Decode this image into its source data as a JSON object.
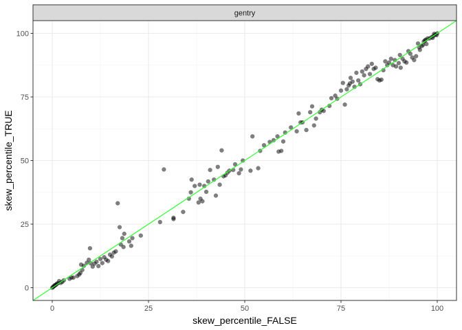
{
  "chart_data": {
    "type": "scatter",
    "facet": "gentry",
    "xlabel": "skew_percentile_FALSE",
    "ylabel": "skew_percentile_TRUE",
    "xlim": [
      -5,
      105
    ],
    "ylim": [
      -5,
      105
    ],
    "xticks": [
      0,
      25,
      50,
      75,
      100
    ],
    "yticks": [
      0,
      25,
      50,
      75,
      100
    ],
    "tick_labels": [
      "0",
      "25",
      "50",
      "75",
      "100"
    ],
    "grid": true,
    "reference_line": {
      "slope": 1,
      "intercept": 0,
      "color": "#33ff33"
    },
    "point_color": "#000000",
    "point_alpha": 0.5,
    "points": [
      [
        0.0,
        0.0
      ],
      [
        0.2,
        0.3
      ],
      [
        0.4,
        0.5
      ],
      [
        0.6,
        0.9
      ],
      [
        0.8,
        1.0
      ],
      [
        1.0,
        1.2
      ],
      [
        1.2,
        1.6
      ],
      [
        1.5,
        1.8
      ],
      [
        1.8,
        2.6
      ],
      [
        2.2,
        1.9
      ],
      [
        2.6,
        2.3
      ],
      [
        3.0,
        2.9
      ],
      [
        4.5,
        3.5
      ],
      [
        5.0,
        4.0
      ],
      [
        5.5,
        4.0
      ],
      [
        6.5,
        4.6
      ],
      [
        7.0,
        5.2
      ],
      [
        7.3,
        5.8
      ],
      [
        7.8,
        7.0
      ],
      [
        7.5,
        9.1
      ],
      [
        8.2,
        8.6
      ],
      [
        9.0,
        9.8
      ],
      [
        9.5,
        11.0
      ],
      [
        9.8,
        15.5
      ],
      [
        10.0,
        9.6
      ],
      [
        10.5,
        8.3
      ],
      [
        11.0,
        9.5
      ],
      [
        11.5,
        10.2
      ],
      [
        12.0,
        8.5
      ],
      [
        12.5,
        11.3
      ],
      [
        13.0,
        9.7
      ],
      [
        13.5,
        12.0
      ],
      [
        14.0,
        11.0
      ],
      [
        14.5,
        10.5
      ],
      [
        15.0,
        13.0
      ],
      [
        15.5,
        12.3
      ],
      [
        16.0,
        13.8
      ],
      [
        16.5,
        14.3
      ],
      [
        17.0,
        33.2
      ],
      [
        17.5,
        23.8
      ],
      [
        17.8,
        17.0
      ],
      [
        18.2,
        19.5
      ],
      [
        18.5,
        16.0
      ],
      [
        18.7,
        21.2
      ],
      [
        20.0,
        18.2
      ],
      [
        20.5,
        16.5
      ],
      [
        20.8,
        19.5
      ],
      [
        23.0,
        20.5
      ],
      [
        28.0,
        25.8
      ],
      [
        29.0,
        46.5
      ],
      [
        31.5,
        27.0
      ],
      [
        31.5,
        27.5
      ],
      [
        34.0,
        29.8
      ],
      [
        35.5,
        35.0
      ],
      [
        36.0,
        37.5
      ],
      [
        36.2,
        42.5
      ],
      [
        37.0,
        40.0
      ],
      [
        38.0,
        33.5
      ],
      [
        38.3,
        40.5
      ],
      [
        38.5,
        35.0
      ],
      [
        39.0,
        34.0
      ],
      [
        39.5,
        40.0
      ],
      [
        40.0,
        37.7
      ],
      [
        40.5,
        41.8
      ],
      [
        41.0,
        46.3
      ],
      [
        42.0,
        42.5
      ],
      [
        42.5,
        36.2
      ],
      [
        43.0,
        47.5
      ],
      [
        43.5,
        40.5
      ],
      [
        44.0,
        54.0
      ],
      [
        44.5,
        43.8
      ],
      [
        45.0,
        44.2
      ],
      [
        45.5,
        45.2
      ],
      [
        46.0,
        46.0
      ],
      [
        47.0,
        46.3
      ],
      [
        47.5,
        48.5
      ],
      [
        48.5,
        45.0
      ],
      [
        49.0,
        46.5
      ],
      [
        49.5,
        50.0
      ],
      [
        51.5,
        46.0
      ],
      [
        52.0,
        59.5
      ],
      [
        53.5,
        47.0
      ],
      [
        54.0,
        53.8
      ],
      [
        55.0,
        56.0
      ],
      [
        56.5,
        57.3
      ],
      [
        57.5,
        58.0
      ],
      [
        58.5,
        59.5
      ],
      [
        58.8,
        53.5
      ],
      [
        59.5,
        53.8
      ],
      [
        60.0,
        57.5
      ],
      [
        60.5,
        61.0
      ],
      [
        62.0,
        63.0
      ],
      [
        63.5,
        61.5
      ],
      [
        64.0,
        68.5
      ],
      [
        64.5,
        65.0
      ],
      [
        65.0,
        65.0
      ],
      [
        66.0,
        62.0
      ],
      [
        67.0,
        69.0
      ],
      [
        67.5,
        71.3
      ],
      [
        68.0,
        63.8
      ],
      [
        68.5,
        66.5
      ],
      [
        69.5,
        69.0
      ],
      [
        70.0,
        70.0
      ],
      [
        70.5,
        69.5
      ],
      [
        72.0,
        71.5
      ],
      [
        72.5,
        74.5
      ],
      [
        73.5,
        75.5
      ],
      [
        74.0,
        74.3
      ],
      [
        75.0,
        77.5
      ],
      [
        75.5,
        80.5
      ],
      [
        76.0,
        72.0
      ],
      [
        76.5,
        78.0
      ],
      [
        77.0,
        79.5
      ],
      [
        77.3,
        80.3
      ],
      [
        77.5,
        82.5
      ],
      [
        78.0,
        81.0
      ],
      [
        78.5,
        79.0
      ],
      [
        79.0,
        84.5
      ],
      [
        79.5,
        81.5
      ],
      [
        80.0,
        80.0
      ],
      [
        80.5,
        85.0
      ],
      [
        81.0,
        83.5
      ],
      [
        81.5,
        86.0
      ],
      [
        82.0,
        87.0
      ],
      [
        82.5,
        84.0
      ],
      [
        83.0,
        88.0
      ],
      [
        83.5,
        86.0
      ],
      [
        84.0,
        86.5
      ],
      [
        84.5,
        82.0
      ],
      [
        85.0,
        81.5
      ],
      [
        85.5,
        81.8
      ],
      [
        86.0,
        85.5
      ],
      [
        86.5,
        89.0
      ],
      [
        87.0,
        87.5
      ],
      [
        87.5,
        88.5
      ],
      [
        88.0,
        90.0
      ],
      [
        88.5,
        87.5
      ],
      [
        89.0,
        89.5
      ],
      [
        89.3,
        87.0
      ],
      [
        90.0,
        88.3
      ],
      [
        90.3,
        91.5
      ],
      [
        90.5,
        86.5
      ],
      [
        91.0,
        90.0
      ],
      [
        91.5,
        89.0
      ],
      [
        92.0,
        88.5
      ],
      [
        92.5,
        93.0
      ],
      [
        93.0,
        92.0
      ],
      [
        93.5,
        90.5
      ],
      [
        94.0,
        89.5
      ],
      [
        94.5,
        91.0
      ],
      [
        95.0,
        96.0
      ],
      [
        95.3,
        94.5
      ],
      [
        95.5,
        93.5
      ],
      [
        96.0,
        95.0
      ],
      [
        96.3,
        95.5
      ],
      [
        96.5,
        96.8
      ],
      [
        97.0,
        97.5
      ],
      [
        97.2,
        95.8
      ],
      [
        97.5,
        98.0
      ],
      [
        98.0,
        98.0
      ],
      [
        98.5,
        98.5
      ],
      [
        99.0,
        99.0
      ],
      [
        99.5,
        99.5
      ],
      [
        100.0,
        100.0
      ],
      [
        99.8,
        99.3
      ],
      [
        99.2,
        99.8
      ],
      [
        98.8,
        98.2
      ],
      [
        96.8,
        97.2
      ]
    ]
  }
}
